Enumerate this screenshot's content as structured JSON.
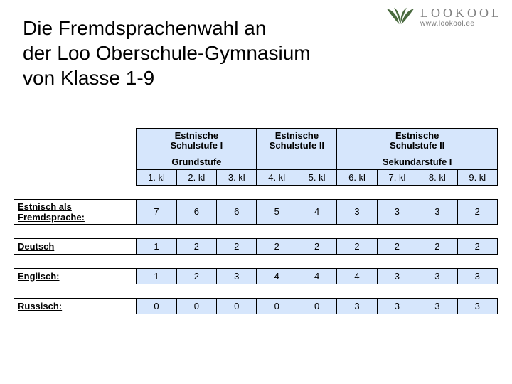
{
  "logo": {
    "brand": "LOOKOOL",
    "url": "www.lookool.ee",
    "mark_color": "#4a6a3f",
    "text_color": "#808080"
  },
  "title_lines": [
    "Die Fremdsprachenwahl an",
    "der Loo Oberschule-Gymnasium",
    "von Klasse 1-9"
  ],
  "table": {
    "type": "table",
    "background_color": "#d6e6fc",
    "border_color": "#000000",
    "font_size": 13,
    "stages": [
      {
        "label": "Estnische Schulstufe I",
        "span": 3
      },
      {
        "label": "Estnische Schulstufe II",
        "span": 2
      },
      {
        "label": "Estnische Schulstufe II",
        "span": 4
      }
    ],
    "levels": [
      {
        "label": "Grundstufe",
        "span": 3
      },
      {
        "label": "",
        "span": 2
      },
      {
        "label": "Sekundarstufe I",
        "span": 4
      }
    ],
    "columns": [
      "1. kl",
      "2. kl",
      "3. kl",
      "4. kl",
      "5. kl",
      "6. kl",
      "7. kl",
      "8. kl",
      "9. kl"
    ],
    "rows": [
      {
        "label": "Estnisch als Fremdsprache:",
        "values": [
          7,
          6,
          6,
          5,
          4,
          3,
          3,
          3,
          2
        ]
      },
      {
        "label": "Deutsch",
        "values": [
          1,
          2,
          2,
          2,
          2,
          2,
          2,
          2,
          2
        ]
      },
      {
        "label": "Englisch:",
        "values": [
          1,
          2,
          3,
          4,
          4,
          4,
          3,
          3,
          3
        ]
      },
      {
        "label": "Russisch:",
        "values": [
          0,
          0,
          0,
          0,
          0,
          3,
          3,
          3,
          3
        ]
      }
    ]
  }
}
